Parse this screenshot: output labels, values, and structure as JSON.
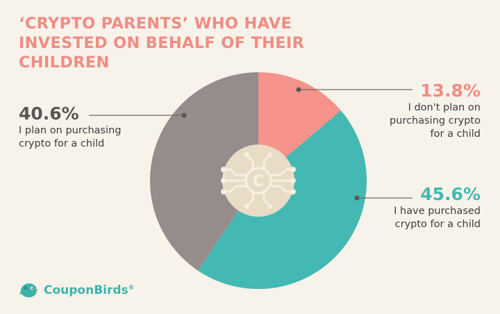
{
  "title": "‘CRYPTO PARENTS’ WHO HAVE INVESTED ON BEHALF OF THEIR CHILDREN",
  "colors": {
    "title": "#f08c84",
    "background": "#f8f3ea",
    "slice_dont_plan": "#f5928a",
    "slice_purchased": "#44b8b2",
    "slice_plan": "#958c8b",
    "center_disc": "#e8dcc6",
    "center_icon": "#f6efe2"
  },
  "center_icon": "crypto-coin-circuit-icon",
  "chart_data": {
    "type": "pie",
    "donut": true,
    "unit": "%",
    "slices": [
      {
        "value": 13.8,
        "label": "13.8%",
        "description": "I don't plan on purchasing crypto for a child",
        "color": "#f5928a"
      },
      {
        "value": 45.6,
        "label": "45.6%",
        "description": "I have purchased crypto for a child",
        "color": "#44b8b2"
      },
      {
        "value": 40.6,
        "label": "40.6%",
        "description": "I plan on purchasing crypto for a child",
        "color": "#958c8b"
      }
    ]
  },
  "callouts": {
    "left": {
      "pct": "40.6%",
      "lines": [
        "I plan on purchasing",
        "crypto for a child"
      ]
    },
    "top_right": {
      "pct": "13.8%",
      "lines": [
        "I don't plan on",
        "purchasing crypto",
        "for a child"
      ]
    },
    "bottom_right": {
      "pct": "45.6%",
      "lines": [
        "I have purchased",
        "crypto for a child"
      ]
    }
  },
  "logo": {
    "text": "CouponBirds",
    "registered": "®"
  }
}
